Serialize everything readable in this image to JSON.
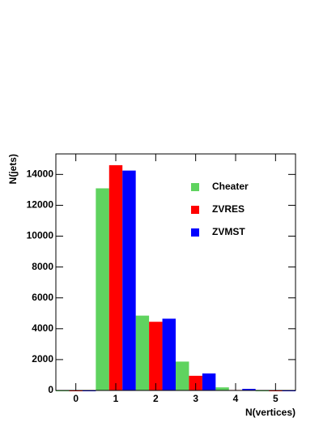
{
  "chart_data": {
    "type": "bar",
    "x_label": "N(vertices)",
    "y_label": "N(jets)",
    "x": [
      0,
      1,
      2,
      3,
      4,
      5
    ],
    "series": [
      {
        "name": "Cheater",
        "color": "#5fd35f",
        "values": [
          0,
          13100,
          4850,
          1870,
          200,
          0
        ]
      },
      {
        "name": "ZVRES",
        "color": "#ff0000",
        "values": [
          0,
          14600,
          4450,
          950,
          30,
          0
        ]
      },
      {
        "name": "ZVMST",
        "color": "#0000ff",
        "values": [
          0,
          14250,
          4650,
          1100,
          100,
          0
        ]
      }
    ],
    "xlim": [
      -0.5,
      5.5
    ],
    "xticks": [
      0,
      1,
      2,
      3,
      4,
      5
    ],
    "ylim": [
      0,
      15330
    ],
    "yticks": [
      0,
      2000,
      4000,
      6000,
      8000,
      10000,
      12000,
      14000
    ],
    "grid": false
  }
}
